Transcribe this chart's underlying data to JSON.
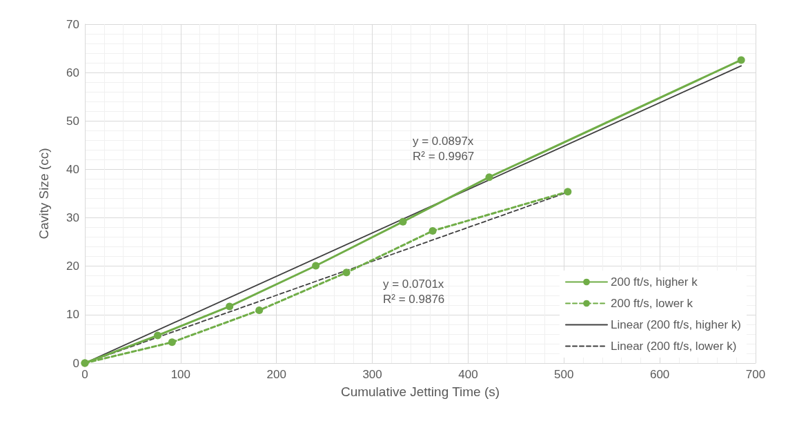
{
  "chart_data": {
    "type": "line",
    "xlabel": "Cumulative Jetting Time (s)",
    "ylabel": "Cavity Size (cc)",
    "xlim": [
      0,
      700
    ],
    "xticks": [
      0,
      100,
      200,
      300,
      400,
      500,
      600,
      700
    ],
    "ylim": [
      0,
      70
    ],
    "yticks": [
      0,
      10,
      20,
      30,
      40,
      50,
      60,
      70
    ],
    "grid": true,
    "legend": "bottom right",
    "marker": "circle",
    "series": [
      {
        "name": "200 ft/s, higher k",
        "color": "#70ad47",
        "x": [
          0,
          76,
          151,
          241,
          332,
          422,
          685
        ],
        "values": [
          0,
          5.7,
          11.7,
          20.1,
          29.2,
          38.4,
          62.6
        ],
        "line_style": "solid"
      },
      {
        "name": "200 ft/s, lower k",
        "color": "#70ad47",
        "x": [
          0,
          91,
          182,
          273,
          363,
          504
        ],
        "values": [
          0,
          4.3,
          10.9,
          18.7,
          27.3,
          35.4
        ],
        "line_style": "dashed"
      },
      {
        "name": "Linear (200 ft/s, higher k)",
        "color": "#404040",
        "x": [
          0,
          685
        ],
        "values": [
          0,
          61.4
        ],
        "line_style": "solid",
        "marker": "none"
      },
      {
        "name": "Linear (200 ft/s, lower k)",
        "color": "#404040",
        "x": [
          0,
          504
        ],
        "values": [
          0,
          35.3
        ],
        "line_style": "dashed",
        "marker": "none"
      }
    ],
    "annotations": [
      "y = 0.0897x\nR² = 0.9967",
      "y = 0.0701x\nR² = 0.9876"
    ]
  }
}
